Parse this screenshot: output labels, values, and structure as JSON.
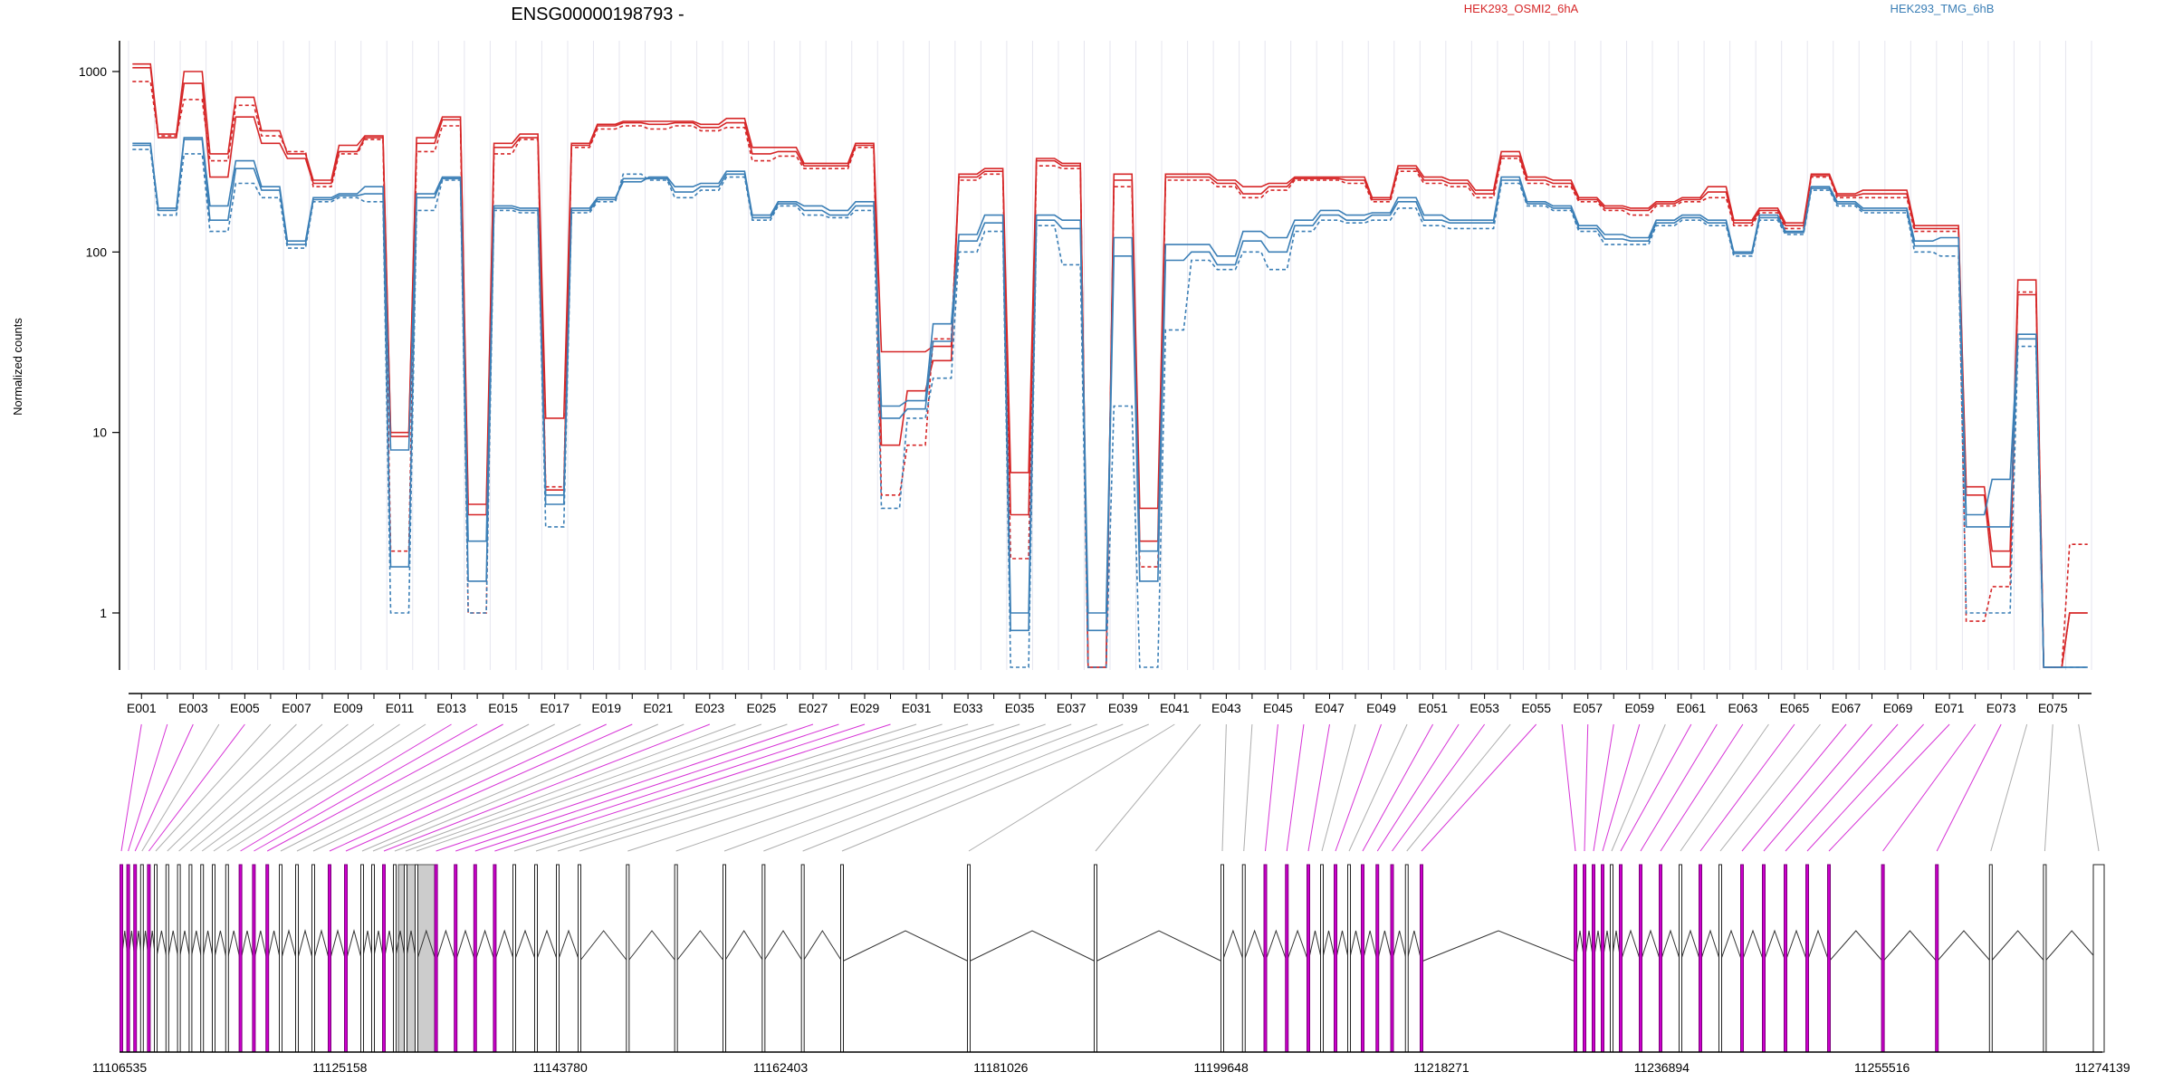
{
  "chart_data": {
    "type": "line",
    "title": "ENSG00000198793 -",
    "ylabel": "Normalized counts",
    "y_scale": "log",
    "y_ticks": [
      "1000",
      "100",
      "10",
      "1"
    ],
    "legend": [
      {
        "name": "HEK293_OSMI2_6hA",
        "color": "#d62728"
      },
      {
        "name": "HEK293_TMG_6hB",
        "color": "#3b7fb6"
      }
    ],
    "legend_placement": "top",
    "colors": {
      "osmi": "#d62728",
      "tmg": "#3b7fb6",
      "exon_highlight": "#cc00cc",
      "gray_connector": "#999999"
    },
    "exon_labels": [
      "E001",
      "E003",
      "E005",
      "E007",
      "E009",
      "E011",
      "E013",
      "E015",
      "E017",
      "E019",
      "E021",
      "E023",
      "E025",
      "E027",
      "E029",
      "E031",
      "E033",
      "E035",
      "E037",
      "E039",
      "E041",
      "E043",
      "E045",
      "E047",
      "E049",
      "E051",
      "E053",
      "E055",
      "E057",
      "E059",
      "E061",
      "E063",
      "E065",
      "E067",
      "E069",
      "E071",
      "E073",
      "E075"
    ],
    "exon_count": 76,
    "genomic_ticks": [
      "11106535",
      "11125158",
      "11143780",
      "11162403",
      "11181026",
      "11199648",
      "11218271",
      "11236894",
      "11255516",
      "11274139"
    ],
    "genomic_range": [
      11106535,
      11274139
    ],
    "series": [
      {
        "name": "HEK293_OSMI2_6hA",
        "group": "osmi",
        "style": "solid",
        "values": [
          1100,
          450,
          1000,
          350,
          720,
          470,
          350,
          250,
          390,
          440,
          10,
          430,
          560,
          4,
          400,
          450,
          12,
          400,
          510,
          530,
          530,
          530,
          510,
          550,
          380,
          380,
          310,
          310,
          400,
          28,
          28,
          30,
          270,
          290,
          6,
          330,
          310,
          0.5,
          270,
          3.8,
          270,
          270,
          250,
          230,
          240,
          260,
          260,
          260,
          200,
          300,
          260,
          250,
          220,
          360,
          260,
          250,
          200,
          180,
          175,
          190,
          200,
          230,
          150,
          175,
          145,
          270,
          210,
          220,
          220,
          140,
          140,
          5,
          2.2,
          70,
          0.5,
          1
        ]
      },
      {
        "name": "HEK293_OSMI2_6hA",
        "group": "osmi",
        "style": "dashed",
        "values": [
          880,
          440,
          700,
          320,
          650,
          440,
          360,
          230,
          350,
          420,
          2.2,
          360,
          500,
          1,
          350,
          420,
          5,
          380,
          480,
          500,
          480,
          500,
          470,
          490,
          320,
          340,
          290,
          290,
          380,
          4.5,
          8.5,
          33,
          250,
          270,
          2,
          300,
          290,
          0.5,
          230,
          1.8,
          250,
          250,
          230,
          200,
          220,
          250,
          250,
          240,
          190,
          280,
          240,
          230,
          200,
          330,
          240,
          230,
          190,
          170,
          160,
          180,
          190,
          200,
          140,
          165,
          135,
          260,
          200,
          200,
          200,
          130,
          130,
          0.9,
          1.4,
          60,
          0.5,
          2.4
        ]
      },
      {
        "name": "HEK293_OSMI2_6hA",
        "group": "osmi",
        "style": "solid",
        "values": [
          1050,
          430,
          860,
          260,
          560,
          400,
          330,
          240,
          360,
          430,
          9.5,
          400,
          540,
          3.5,
          380,
          430,
          4.8,
          390,
          500,
          520,
          510,
          520,
          490,
          520,
          350,
          360,
          300,
          300,
          390,
          8.5,
          17,
          25,
          260,
          280,
          3.5,
          320,
          300,
          0.5,
          250,
          2.5,
          260,
          260,
          240,
          210,
          230,
          255,
          255,
          250,
          195,
          290,
          250,
          240,
          210,
          340,
          250,
          240,
          195,
          175,
          170,
          185,
          195,
          215,
          145,
          170,
          140,
          265,
          205,
          210,
          210,
          135,
          135,
          4.5,
          1.8,
          58,
          0.5,
          1
        ]
      },
      {
        "name": "HEK293_TMG_6hB",
        "group": "tmg",
        "style": "solid",
        "values": [
          390,
          175,
          430,
          180,
          320,
          230,
          115,
          200,
          210,
          230,
          8,
          210,
          260,
          2.5,
          180,
          175,
          4.5,
          175,
          200,
          245,
          260,
          230,
          240,
          280,
          160,
          190,
          180,
          170,
          190,
          14,
          15,
          40,
          125,
          160,
          1,
          160,
          150,
          1,
          120,
          2.2,
          110,
          110,
          95,
          130,
          120,
          150,
          170,
          160,
          165,
          200,
          160,
          150,
          150,
          260,
          190,
          180,
          140,
          125,
          120,
          150,
          160,
          150,
          100,
          160,
          130,
          230,
          190,
          175,
          175,
          115,
          120,
          3.5,
          5.5,
          35,
          0.5,
          0.5
        ]
      },
      {
        "name": "HEK293_TMG_6hB",
        "group": "tmg",
        "style": "dashed",
        "values": [
          370,
          160,
          350,
          130,
          240,
          200,
          105,
          190,
          200,
          190,
          1,
          170,
          250,
          1,
          170,
          165,
          3,
          165,
          190,
          270,
          250,
          200,
          220,
          260,
          150,
          180,
          160,
          155,
          170,
          3.8,
          12,
          20,
          100,
          130,
          0.5,
          140,
          85,
          0.5,
          14,
          0.5,
          37,
          90,
          80,
          100,
          80,
          130,
          150,
          145,
          150,
          175,
          140,
          135,
          135,
          240,
          180,
          170,
          130,
          110,
          110,
          140,
          150,
          140,
          95,
          150,
          125,
          220,
          180,
          165,
          165,
          100,
          95,
          1,
          1,
          30,
          0.5,
          0.5
        ]
      },
      {
        "name": "HEK293_TMG_6hB",
        "group": "tmg",
        "style": "solid",
        "values": [
          400,
          170,
          420,
          150,
          290,
          220,
          110,
          195,
          205,
          210,
          1.8,
          200,
          255,
          1.5,
          175,
          170,
          4,
          170,
          195,
          255,
          255,
          215,
          230,
          270,
          155,
          185,
          170,
          160,
          180,
          12,
          13.5,
          32,
          115,
          145,
          0.8,
          150,
          135,
          0.8,
          95,
          1.5,
          90,
          100,
          85,
          115,
          100,
          140,
          160,
          150,
          160,
          190,
          150,
          145,
          145,
          250,
          185,
          175,
          135,
          118,
          115,
          145,
          155,
          145,
          98,
          155,
          128,
          225,
          185,
          170,
          170,
          108,
          108,
          3,
          3,
          33,
          0.5,
          0.5
        ]
      }
    ],
    "exon_model": {
      "highlighted_exons": [
        0,
        1,
        2,
        4,
        12,
        13,
        14,
        18,
        19,
        22,
        26,
        27,
        28,
        29,
        44,
        45,
        46,
        48,
        50,
        51,
        52,
        54,
        55,
        56,
        57,
        58,
        60,
        61,
        62,
        64,
        66,
        67,
        68,
        69,
        70,
        71,
        72
      ],
      "collapsed_region_exons": [
        30,
        31,
        32,
        33,
        34,
        35,
        36,
        37,
        38,
        39,
        40,
        41,
        42
      ]
    }
  }
}
